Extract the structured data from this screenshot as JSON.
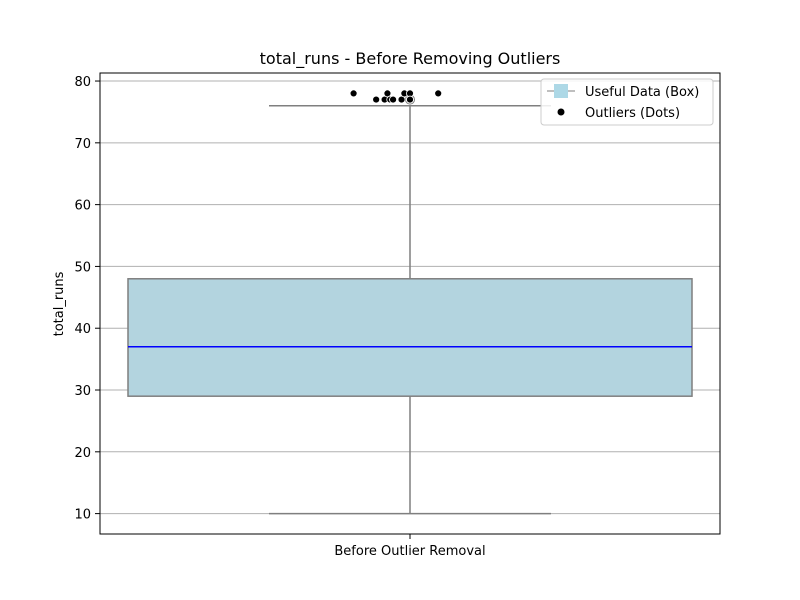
{
  "chart_data": {
    "type": "box",
    "title": "total_runs - Before Removing Outliers",
    "xlabel": "",
    "ylabel": "total_runs",
    "categories": [
      "Before Outlier Removal"
    ],
    "ylim": [
      6.7,
      81.3
    ],
    "yticks": [
      10,
      20,
      30,
      40,
      50,
      60,
      70,
      80
    ],
    "grid": "y",
    "box": {
      "whisker_low": 10,
      "q1": 29,
      "median": 37,
      "q3": 48,
      "whisker_high": 76
    },
    "outliers": [
      {
        "x": -0.1,
        "y": 78
      },
      {
        "x": -0.06,
        "y": 77
      },
      {
        "x": -0.045,
        "y": 77
      },
      {
        "x": -0.04,
        "y": 78
      },
      {
        "x": -0.035,
        "y": 77
      },
      {
        "x": -0.03,
        "y": 77
      },
      {
        "x": -0.03,
        "y": 77
      },
      {
        "x": -0.015,
        "y": 77
      },
      {
        "x": -0.01,
        "y": 78
      },
      {
        "x": 0.0,
        "y": 78
      },
      {
        "x": 0.0,
        "y": 77
      },
      {
        "x": 0.05,
        "y": 78
      }
    ],
    "legend": {
      "position": "top-right",
      "entries": [
        {
          "label": "Useful Data (Box)",
          "marker": "square"
        },
        {
          "label": "Outliers (Dots)",
          "marker": "dot"
        }
      ]
    },
    "colors": {
      "box_fill": "#b3d4df",
      "box_edge": "#7f7f7f",
      "median": "#0000ff",
      "whisker": "#7f7f7f",
      "outlier": "#000000",
      "grid": "#b0b0b0",
      "legend_square": "#add8e6"
    }
  }
}
